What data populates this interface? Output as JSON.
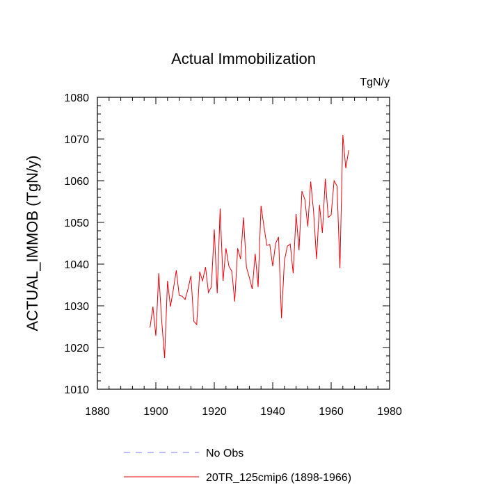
{
  "chart_data": {
    "type": "line",
    "title": "Actual Immobilization",
    "units": "TgN/y",
    "xlabel": "",
    "ylabel": "ACTUAL_IMMOB  (TgN/y)",
    "xlim": [
      1880,
      1980
    ],
    "ylim": [
      1010,
      1080
    ],
    "x_ticks": [
      1880,
      1900,
      1920,
      1940,
      1960,
      1980
    ],
    "y_ticks": [
      1010,
      1020,
      1030,
      1040,
      1050,
      1060,
      1070,
      1080
    ],
    "grid": false,
    "legend_position": "bottom",
    "series": [
      {
        "name": "No Obs",
        "style": "dashed",
        "color": "#7777ff",
        "x": [],
        "values": []
      },
      {
        "name": "20TR_125cmip6 (1898-1966)",
        "style": "solid",
        "color": "#e8000b",
        "x": [
          1898,
          1899,
          1900,
          1901,
          1902,
          1903,
          1904,
          1905,
          1906,
          1907,
          1908,
          1909,
          1910,
          1911,
          1912,
          1913,
          1914,
          1915,
          1916,
          1917,
          1918,
          1919,
          1920,
          1921,
          1922,
          1923,
          1924,
          1925,
          1926,
          1927,
          1928,
          1929,
          1930,
          1931,
          1932,
          1933,
          1934,
          1935,
          1936,
          1937,
          1938,
          1939,
          1940,
          1941,
          1942,
          1943,
          1944,
          1945,
          1946,
          1947,
          1948,
          1949,
          1950,
          1951,
          1952,
          1953,
          1954,
          1955,
          1956,
          1957,
          1958,
          1959,
          1960,
          1961,
          1962,
          1963,
          1964,
          1965,
          1966
        ],
        "values": [
          1024.8,
          1029.8,
          1022.8,
          1037.8,
          1026.5,
          1017.5,
          1036.0,
          1029.8,
          1034.0,
          1038.5,
          1032.5,
          1032.3,
          1031.5,
          1034.0,
          1037.2,
          1026.3,
          1025.5,
          1038.2,
          1036.0,
          1039.3,
          1033.2,
          1034.5,
          1048.3,
          1033.0,
          1053.3,
          1036.0,
          1043.8,
          1039.5,
          1038.3,
          1031.0,
          1043.8,
          1041.2,
          1051.2,
          1039.3,
          1036.8,
          1034.0,
          1042.5,
          1034.5,
          1054.0,
          1049.0,
          1044.5,
          1044.7,
          1039.5,
          1045.0,
          1046.5,
          1027.0,
          1040.8,
          1044.3,
          1044.8,
          1037.8,
          1052.0,
          1043.3,
          1057.5,
          1055.5,
          1049.0,
          1059.8,
          1052.5,
          1041.2,
          1054.2,
          1047.5,
          1060.5,
          1051.2,
          1051.8,
          1060.0,
          1058.7,
          1039.0,
          1071.0,
          1063.0,
          1067.3
        ]
      }
    ]
  }
}
